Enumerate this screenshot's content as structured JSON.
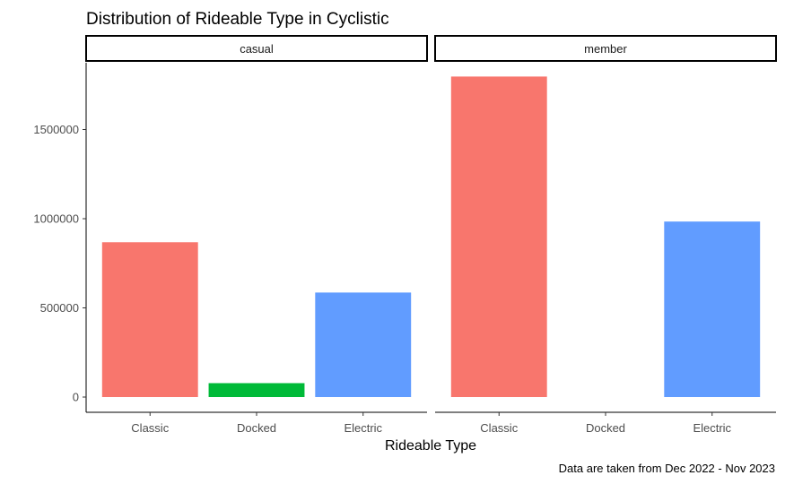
{
  "chart_data": {
    "type": "bar",
    "title": "Distribution of Rideable Type in Cyclistic",
    "xlabel": "Rideable Type",
    "ylabel": "",
    "caption": "Data are taken from Dec 2022 - Nov 2023",
    "categories": [
      "Classic",
      "Docked",
      "Electric"
    ],
    "category_colors": [
      "#F8766D",
      "#00BA38",
      "#619CFF"
    ],
    "ylim": [
      0,
      1900000
    ],
    "yticks": [
      0,
      500000,
      1000000,
      1500000
    ],
    "ytick_labels": [
      "0",
      "500000",
      "1000000",
      "1500000"
    ],
    "grid": false,
    "legend": "none",
    "facets": [
      {
        "label": "casual",
        "values": [
          868000,
          78000,
          586000
        ]
      },
      {
        "label": "member",
        "values": [
          1797000,
          0,
          984000
        ]
      }
    ]
  }
}
